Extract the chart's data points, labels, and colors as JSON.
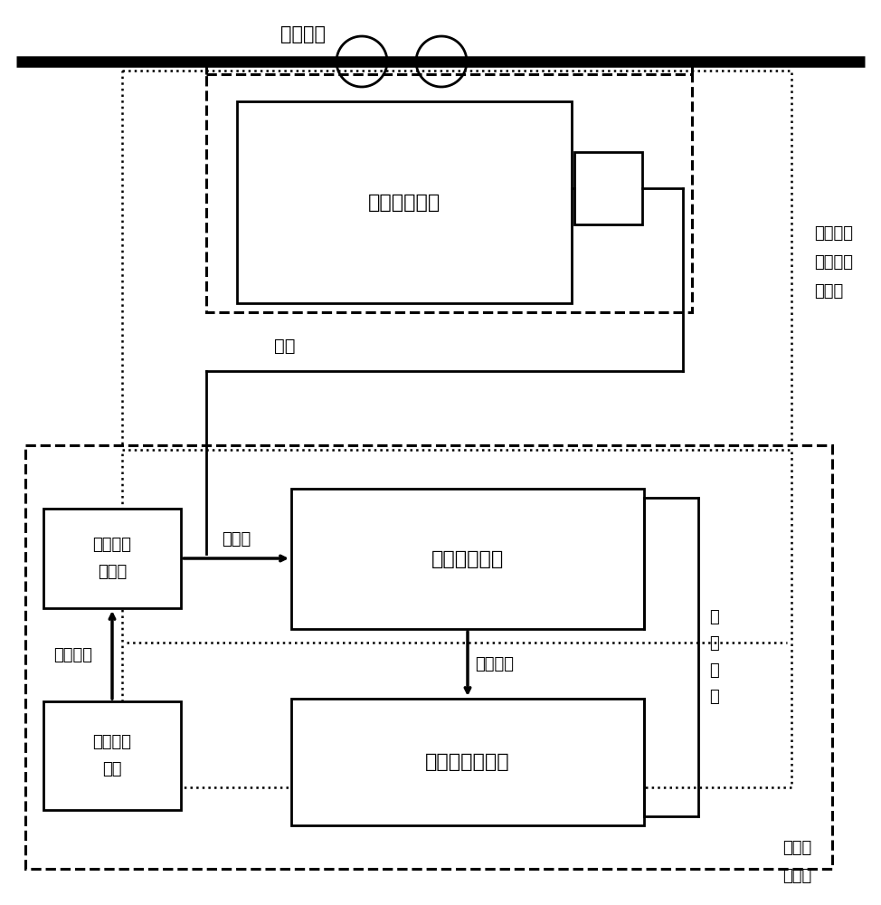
{
  "primary_line_label": "一次线路",
  "sensor_box_label": "光电流传感器",
  "fiber_label": "光纤",
  "outer_dotted_label": "被委托光\n电式电流\n互感器",
  "remote_module_label": "同型号远\n动模块",
  "optical_signal_label": "光信号",
  "optical_converter_label": "光数字转换器",
  "digital_signal_label": "数字信号",
  "control_system_label": "控制、保护系统",
  "analog_signal_label": "模拟信号",
  "standard_source_label": "高精度标\n准源",
  "data_network_label": "数\n据\n网\n络",
  "control_room_label": "控制、\n保护室"
}
